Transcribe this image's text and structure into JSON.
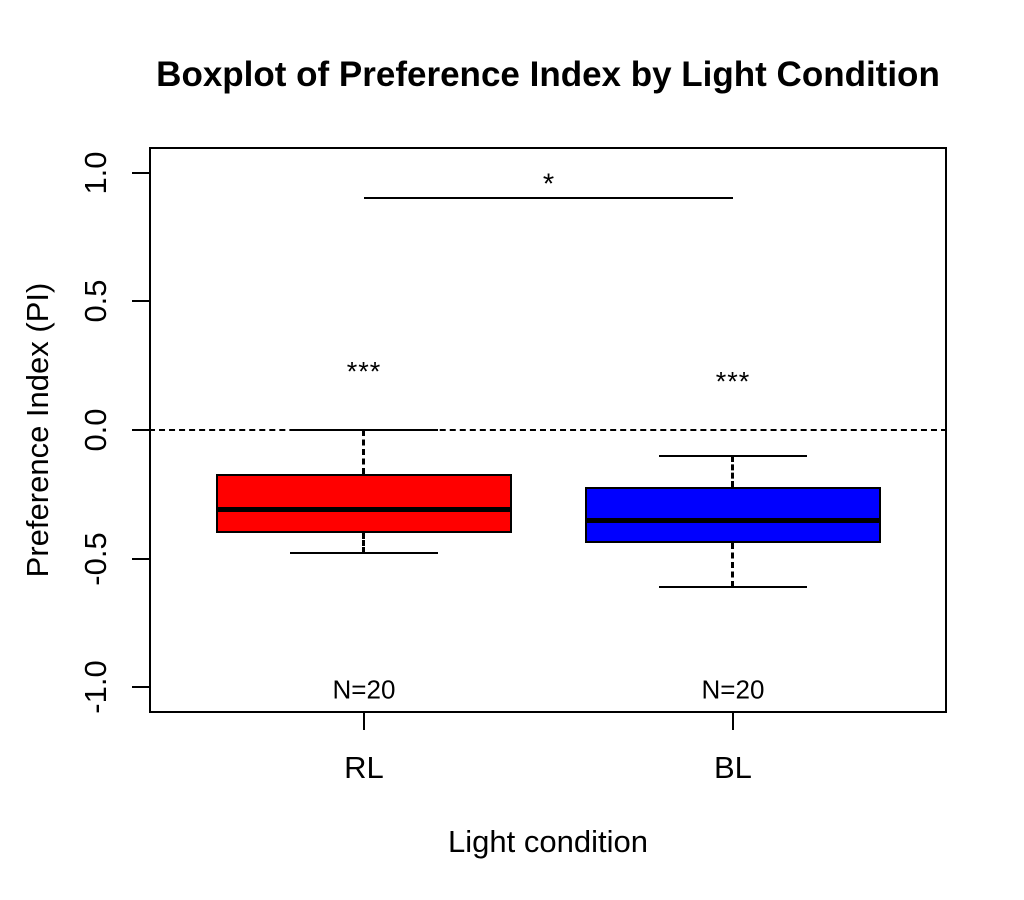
{
  "chart_data": {
    "type": "boxplot",
    "title": "Boxplot of Preference Index by Light Condition",
    "xlabel": "Light condition",
    "ylabel": "Preference Index (PI)",
    "ylim": [
      -1.1,
      1.1
    ],
    "yticks": [
      {
        "value": -1.0,
        "label": "-1.0"
      },
      {
        "value": -0.5,
        "label": "-0.5"
      },
      {
        "value": 0.0,
        "label": "0.0"
      },
      {
        "value": 0.5,
        "label": "0.5"
      },
      {
        "value": 1.0,
        "label": "1.0"
      }
    ],
    "reference_line": {
      "y": 0.0,
      "style": "dashed"
    },
    "categories": [
      "RL",
      "BL"
    ],
    "groups": [
      {
        "label": "RL",
        "fill_color": "#ff0000",
        "n_label": "N=20",
        "whisker_low": -0.48,
        "q1": -0.4,
        "median": -0.31,
        "q3": -0.17,
        "whisker_high": 0.0,
        "sig_label": "***",
        "sig_label_y": 0.25
      },
      {
        "label": "BL",
        "fill_color": "#0000ff",
        "n_label": "N=20",
        "whisker_low": -0.61,
        "q1": -0.44,
        "median": -0.35,
        "q3": -0.22,
        "whisker_high": -0.1,
        "sig_label": "***",
        "sig_label_y": 0.21
      }
    ],
    "comparison_bracket": {
      "label": "*",
      "line_y": 0.9,
      "label_y": 0.98,
      "between": [
        "RL",
        "BL"
      ]
    },
    "n_label_y": -1.0,
    "line_color": "#000000",
    "background_color": "#ffffff",
    "legend": "none",
    "grid": "off"
  }
}
